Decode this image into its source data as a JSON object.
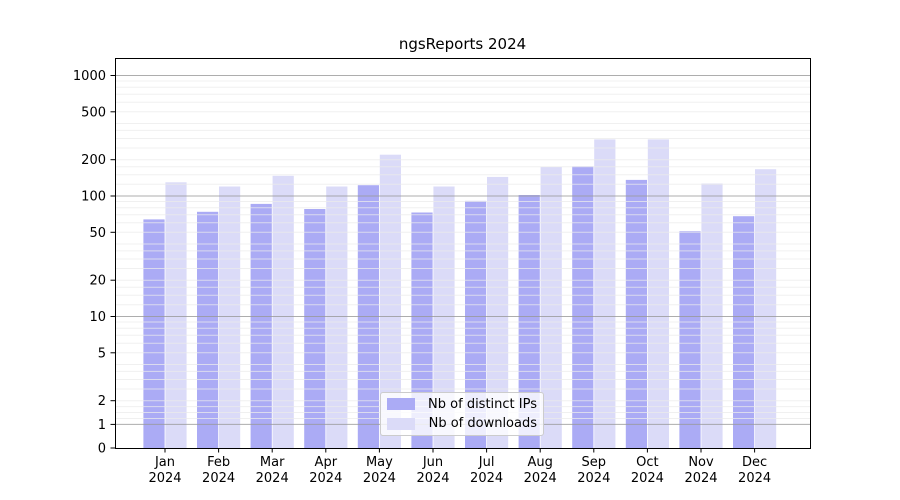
{
  "title": "ngsReports 2024",
  "chart_data": {
    "type": "bar",
    "title": "ngsReports 2024",
    "categories": [
      "Jan",
      "Feb",
      "Mar",
      "Apr",
      "May",
      "Jun",
      "Jul",
      "Aug",
      "Sep",
      "Oct",
      "Nov",
      "Dec"
    ],
    "x_year_label": "2024",
    "series": [
      {
        "name": "Nb of distinct IPs",
        "color": "#ababf5",
        "values": [
          64,
          74,
          86,
          78,
          123,
          73,
          91,
          102,
          176,
          136,
          51,
          68
        ]
      },
      {
        "name": "Nb of downloads",
        "color": "#dbdbf8",
        "values": [
          130,
          120,
          147,
          120,
          220,
          120,
          144,
          174,
          295,
          295,
          127,
          167
        ]
      }
    ],
    "yaxis": {
      "ticks": [
        1000,
        500,
        200,
        100,
        50,
        20,
        10,
        5,
        2,
        1,
        0
      ],
      "scale": "symlog",
      "ylim": [
        0,
        1400
      ],
      "major_gridlines": [
        1,
        10,
        100,
        1000
      ]
    },
    "legend_position": "lower center",
    "grid": true,
    "colors": {
      "bar_distinct_ips": "#ababf5",
      "bar_downloads": "#dbdbf8",
      "major_grid": "#b0b0b0",
      "minor_grid": "#ebebeb",
      "axis": "#000000",
      "background": "#ffffff"
    }
  }
}
